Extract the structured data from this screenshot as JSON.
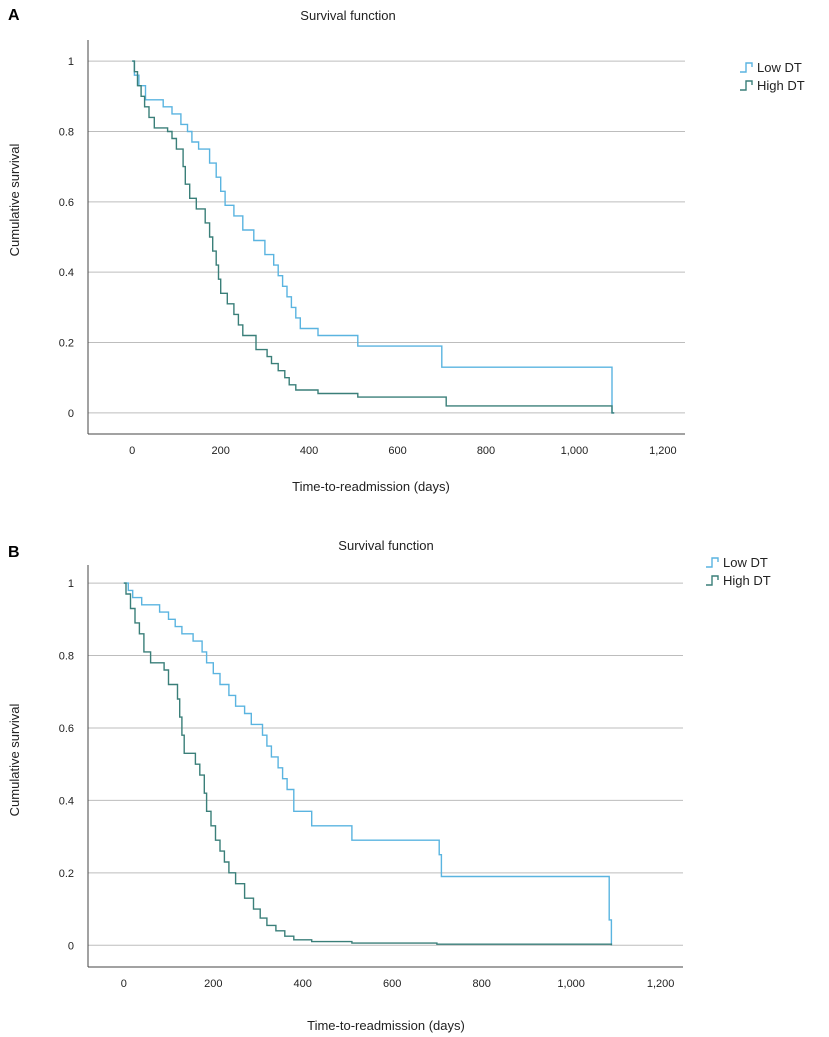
{
  "chart_data": [
    {
      "panel": "A",
      "type": "line",
      "title": "Survival function",
      "xlabel": "Time-to-readmission (days)",
      "ylabel": "Cumulative survival",
      "xlim": [
        -100,
        1250
      ],
      "ylim": [
        -0.06,
        1.06
      ],
      "xticks": [
        0,
        200,
        400,
        600,
        800,
        1000,
        1200
      ],
      "xtick_labels": [
        "0",
        "200",
        "400",
        "600",
        "800",
        "1,000",
        "1,200"
      ],
      "yticks": [
        0,
        0.2,
        0.4,
        0.6,
        0.8,
        1
      ],
      "ytick_labels": [
        "0",
        "0.2",
        "0.4",
        "0.6",
        "0.8",
        "1"
      ],
      "grid": true,
      "legend_position": "top-right",
      "series": [
        {
          "name": "Low DT",
          "color": "#5ab4e0",
          "steps": [
            [
              0,
              1
            ],
            [
              5,
              0.96
            ],
            [
              15,
              0.93
            ],
            [
              30,
              0.89
            ],
            [
              70,
              0.87
            ],
            [
              90,
              0.85
            ],
            [
              110,
              0.82
            ],
            [
              125,
              0.8
            ],
            [
              135,
              0.77
            ],
            [
              150,
              0.75
            ],
            [
              175,
              0.71
            ],
            [
              190,
              0.67
            ],
            [
              200,
              0.63
            ],
            [
              210,
              0.59
            ],
            [
              230,
              0.56
            ],
            [
              250,
              0.52
            ],
            [
              275,
              0.49
            ],
            [
              300,
              0.45
            ],
            [
              320,
              0.42
            ],
            [
              330,
              0.39
            ],
            [
              340,
              0.36
            ],
            [
              350,
              0.33
            ],
            [
              360,
              0.3
            ],
            [
              370,
              0.27
            ],
            [
              380,
              0.24
            ],
            [
              420,
              0.22
            ],
            [
              510,
              0.19
            ],
            [
              700,
              0.13
            ],
            [
              1085,
              0.0
            ]
          ],
          "end": 1090
        },
        {
          "name": "High DT",
          "color": "#3a7f79",
          "steps": [
            [
              0,
              1
            ],
            [
              5,
              0.97
            ],
            [
              12,
              0.93
            ],
            [
              20,
              0.9
            ],
            [
              28,
              0.87
            ],
            [
              38,
              0.84
            ],
            [
              50,
              0.81
            ],
            [
              80,
              0.8
            ],
            [
              90,
              0.78
            ],
            [
              100,
              0.75
            ],
            [
              115,
              0.7
            ],
            [
              120,
              0.65
            ],
            [
              130,
              0.61
            ],
            [
              145,
              0.58
            ],
            [
              165,
              0.54
            ],
            [
              175,
              0.5
            ],
            [
              182,
              0.46
            ],
            [
              190,
              0.42
            ],
            [
              195,
              0.38
            ],
            [
              200,
              0.34
            ],
            [
              215,
              0.31
            ],
            [
              230,
              0.28
            ],
            [
              240,
              0.25
            ],
            [
              250,
              0.22
            ],
            [
              280,
              0.18
            ],
            [
              305,
              0.16
            ],
            [
              315,
              0.14
            ],
            [
              330,
              0.12
            ],
            [
              345,
              0.1
            ],
            [
              355,
              0.08
            ],
            [
              370,
              0.065
            ],
            [
              420,
              0.055
            ],
            [
              510,
              0.045
            ],
            [
              710,
              0.02
            ],
            [
              1085,
              0.0
            ]
          ],
          "end": 1090
        }
      ]
    },
    {
      "panel": "B",
      "type": "line",
      "title": "Survival function",
      "xlabel": "Time-to-readmission (days)",
      "ylabel": "Cumulative survival",
      "xlim": [
        -80,
        1250
      ],
      "ylim": [
        -0.06,
        1.05
      ],
      "xticks": [
        0,
        200,
        400,
        600,
        800,
        1000,
        1200
      ],
      "xtick_labels": [
        "0",
        "200",
        "400",
        "600",
        "800",
        "1,000",
        "1,200"
      ],
      "yticks": [
        0,
        0.2,
        0.4,
        0.6,
        0.8,
        1
      ],
      "ytick_labels": [
        "0",
        "0.2",
        "0.4",
        "0.6",
        "0.8",
        "1"
      ],
      "grid": true,
      "legend_position": "top-right",
      "series": [
        {
          "name": "Low DT",
          "color": "#5ab4e0",
          "steps": [
            [
              0,
              1
            ],
            [
              10,
              0.98
            ],
            [
              20,
              0.96
            ],
            [
              40,
              0.94
            ],
            [
              80,
              0.92
            ],
            [
              100,
              0.9
            ],
            [
              115,
              0.88
            ],
            [
              130,
              0.86
            ],
            [
              155,
              0.84
            ],
            [
              175,
              0.81
            ],
            [
              185,
              0.78
            ],
            [
              200,
              0.75
            ],
            [
              215,
              0.72
            ],
            [
              235,
              0.69
            ],
            [
              250,
              0.66
            ],
            [
              270,
              0.64
            ],
            [
              285,
              0.61
            ],
            [
              310,
              0.58
            ],
            [
              320,
              0.55
            ],
            [
              330,
              0.52
            ],
            [
              345,
              0.49
            ],
            [
              355,
              0.46
            ],
            [
              365,
              0.43
            ],
            [
              380,
              0.37
            ],
            [
              420,
              0.33
            ],
            [
              510,
              0.29
            ],
            [
              705,
              0.25
            ],
            [
              710,
              0.19
            ],
            [
              1085,
              0.07
            ],
            [
              1090,
              0.0
            ]
          ],
          "end": 1090
        },
        {
          "name": "High DT",
          "color": "#3a7f79",
          "steps": [
            [
              0,
              1
            ],
            [
              5,
              0.97
            ],
            [
              15,
              0.93
            ],
            [
              25,
              0.89
            ],
            [
              35,
              0.86
            ],
            [
              45,
              0.81
            ],
            [
              60,
              0.78
            ],
            [
              90,
              0.76
            ],
            [
              100,
              0.72
            ],
            [
              120,
              0.68
            ],
            [
              125,
              0.63
            ],
            [
              130,
              0.58
            ],
            [
              135,
              0.53
            ],
            [
              160,
              0.5
            ],
            [
              170,
              0.47
            ],
            [
              180,
              0.42
            ],
            [
              185,
              0.37
            ],
            [
              195,
              0.33
            ],
            [
              205,
              0.29
            ],
            [
              215,
              0.26
            ],
            [
              225,
              0.23
            ],
            [
              235,
              0.2
            ],
            [
              250,
              0.17
            ],
            [
              270,
              0.13
            ],
            [
              290,
              0.1
            ],
            [
              305,
              0.075
            ],
            [
              320,
              0.055
            ],
            [
              340,
              0.04
            ],
            [
              360,
              0.025
            ],
            [
              380,
              0.015
            ],
            [
              420,
              0.01
            ],
            [
              510,
              0.006
            ],
            [
              700,
              0.003
            ],
            [
              1090,
              0.0
            ]
          ],
          "end": 1090
        }
      ]
    }
  ]
}
